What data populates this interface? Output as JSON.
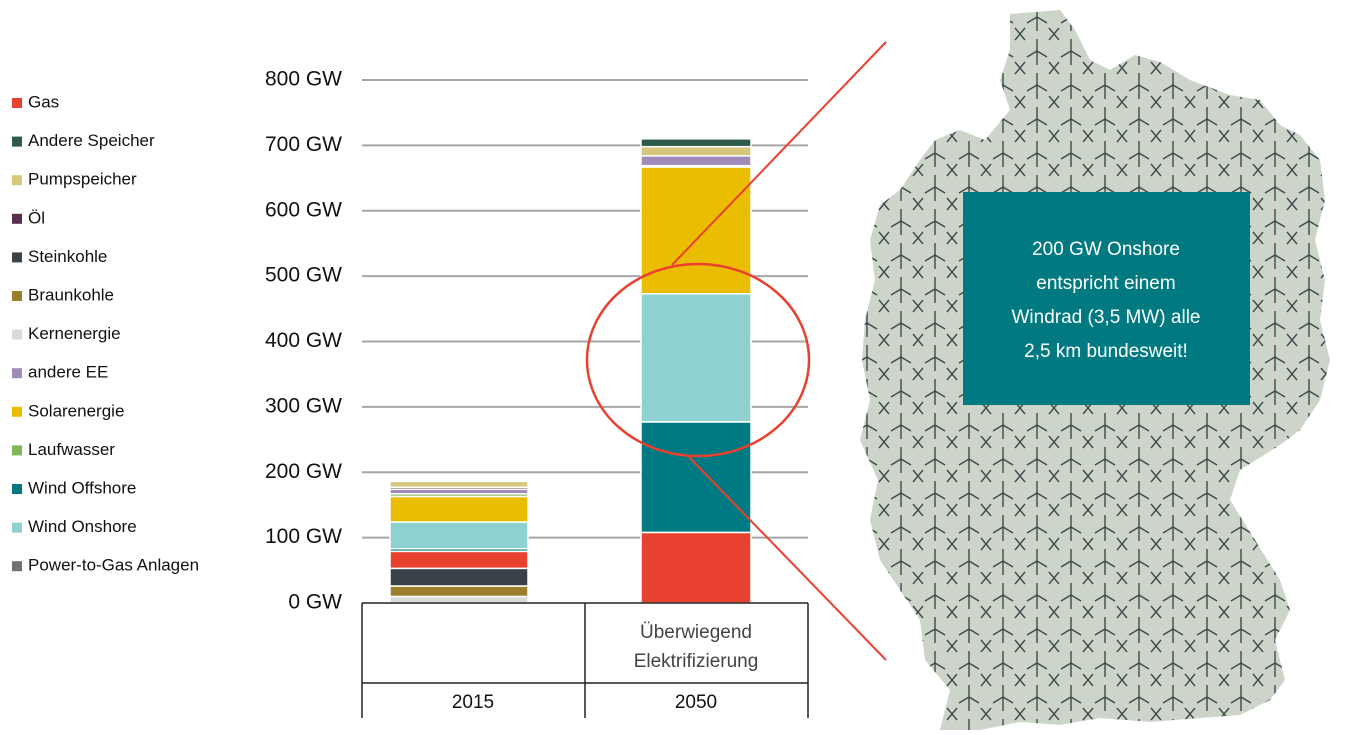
{
  "chart_data": {
    "type": "stacked_bar",
    "categories": [
      "2015",
      "2050"
    ],
    "category_sublabels": [
      null,
      [
        "Überwiegend",
        "Elektrifizierung"
      ]
    ],
    "series": [
      {
        "name": "Gas",
        "color": "#e8412f",
        "values": [
          26,
          108
        ]
      },
      {
        "name": "Andere Speicher",
        "color": "#2e5a4a",
        "values": [
          0,
          12
        ]
      },
      {
        "name": "Pumpspeicher",
        "color": "#d6c77a",
        "values": [
          9,
          14
        ]
      },
      {
        "name": "Öl",
        "color": "#5b2d4f",
        "values": [
          3,
          0
        ]
      },
      {
        "name": "Steinkohle",
        "color": "#3a4248",
        "values": [
          27,
          0
        ]
      },
      {
        "name": "Braunkohle",
        "color": "#9c7f2a",
        "values": [
          16,
          0
        ]
      },
      {
        "name": "Kernenergie",
        "color": "#d7ddd6",
        "values": [
          10,
          0
        ]
      },
      {
        "name": "andere EE",
        "color": "#a08ab8",
        "values": [
          7,
          15
        ]
      },
      {
        "name": "Solarenergie",
        "color": "#ebbd00",
        "values": [
          39,
          194
        ]
      },
      {
        "name": "Laufwasser",
        "color": "#7fb85a",
        "values": [
          4,
          2
        ]
      },
      {
        "name": "Wind Offshore",
        "color": "#007a82",
        "values": [
          4,
          169
        ]
      },
      {
        "name": "Wind Onshore",
        "color": "#8fd0d0",
        "values": [
          41,
          196
        ]
      },
      {
        "name": "Power-to-Gas Anlagen",
        "color": "#707070",
        "values": [
          0,
          0
        ]
      }
    ],
    "stack_order": [
      12,
      6,
      5,
      4,
      0,
      10,
      11,
      8,
      9,
      7,
      3,
      2,
      1
    ],
    "ylim": [
      0,
      800
    ],
    "yticks": [
      {
        "value": 0,
        "label": "0 GW"
      },
      {
        "value": 100,
        "label": "100 GW"
      },
      {
        "value": 200,
        "label": "200 GW"
      },
      {
        "value": 300,
        "label": "300 GW"
      },
      {
        "value": 400,
        "label": "400 GW"
      },
      {
        "value": 500,
        "label": "500 GW"
      },
      {
        "value": 600,
        "label": "600 GW"
      },
      {
        "value": 700,
        "label": "700 GW"
      },
      {
        "value": 800,
        "label": "800 GW"
      }
    ],
    "grid": true,
    "annotation": [
      "200 GW Onshore",
      "entspricht einem",
      "Windrad (3,5 MW) alle",
      "2,5 km bundesweit!"
    ]
  }
}
